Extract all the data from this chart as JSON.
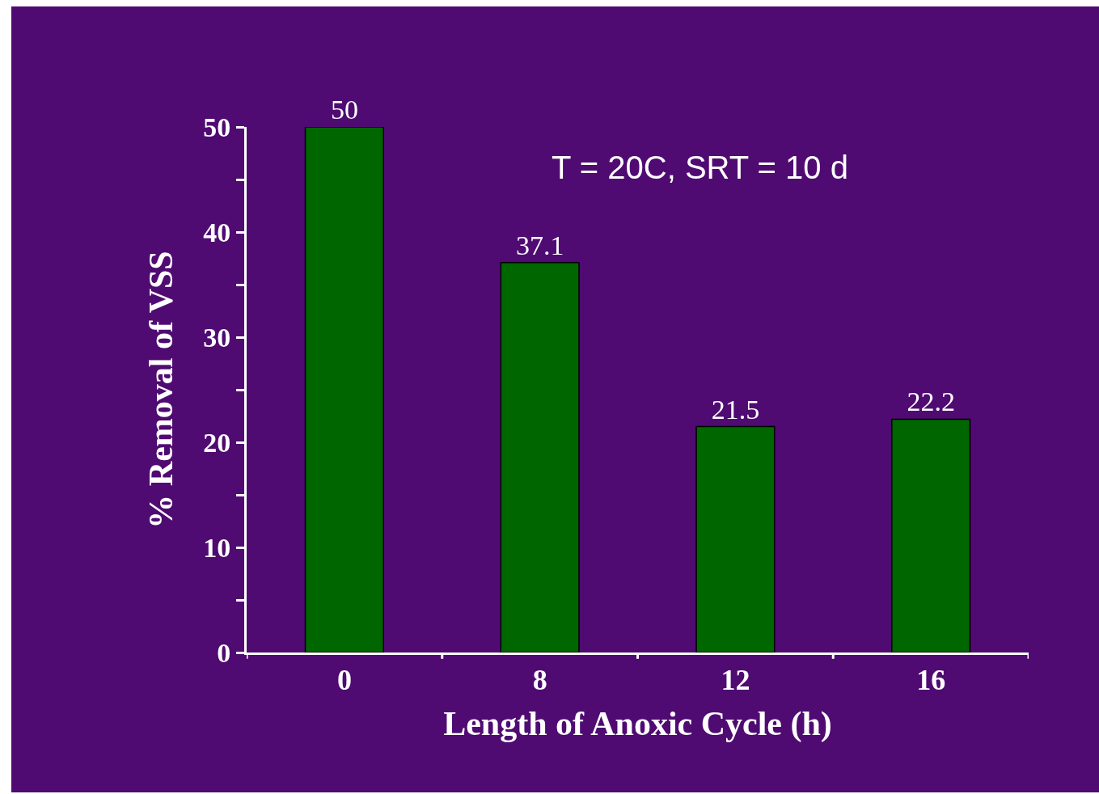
{
  "chart_data": {
    "type": "bar",
    "xlabel": "Length of Anoxic Cycle (h)",
    "ylabel": "% Removal of VSS",
    "categories": [
      "0",
      "8",
      "12",
      "16"
    ],
    "values": [
      50,
      37.1,
      21.5,
      22.2
    ],
    "color": "#006600",
    "data_labels": true,
    "ylim": [
      0,
      50
    ],
    "yticks": [
      0,
      {
        "value": 5,
        "label": null
      },
      10,
      {
        "value": 15,
        "label": null
      },
      20,
      {
        "value": 25,
        "label": null
      },
      30,
      {
        "value": 35,
        "label": null
      },
      40,
      {
        "value": 45,
        "label": null
      },
      50
    ],
    "annotations": [
      "T = 20C, SRT = 10 d"
    ]
  }
}
